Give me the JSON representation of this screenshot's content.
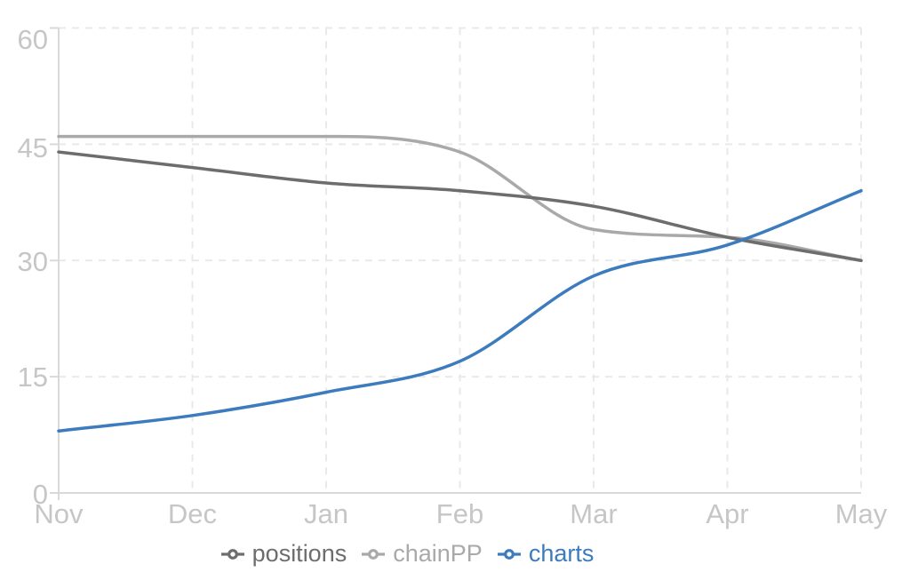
{
  "chart_data": {
    "type": "line",
    "title": "",
    "xlabel": "",
    "ylabel": "",
    "categories": [
      "Nov",
      "Dec",
      "Jan",
      "Feb",
      "Mar",
      "Apr",
      "May"
    ],
    "series": [
      {
        "name": "positions",
        "color": "#6d6d6d",
        "values": [
          44,
          42,
          40,
          39,
          37,
          33,
          30
        ]
      },
      {
        "name": "chainPP",
        "color": "#a9a9a9",
        "values": [
          46,
          46,
          46,
          44,
          34,
          33,
          30
        ]
      },
      {
        "name": "charts",
        "color": "#3c7bbd",
        "values": [
          8,
          10,
          13,
          17,
          28,
          32,
          39
        ]
      }
    ],
    "ylim": [
      0,
      60
    ],
    "yticks": [
      0,
      15,
      30,
      45,
      60
    ],
    "grid": "dashed",
    "legend_position": "bottom",
    "theme": {
      "background": "#ffffff",
      "axis_line_color": "#d9d9d9",
      "grid_line_color": "#e9e9e9",
      "tick_label_color": "#c6c6c6",
      "legend_marker_fill": "#ffffff"
    }
  }
}
